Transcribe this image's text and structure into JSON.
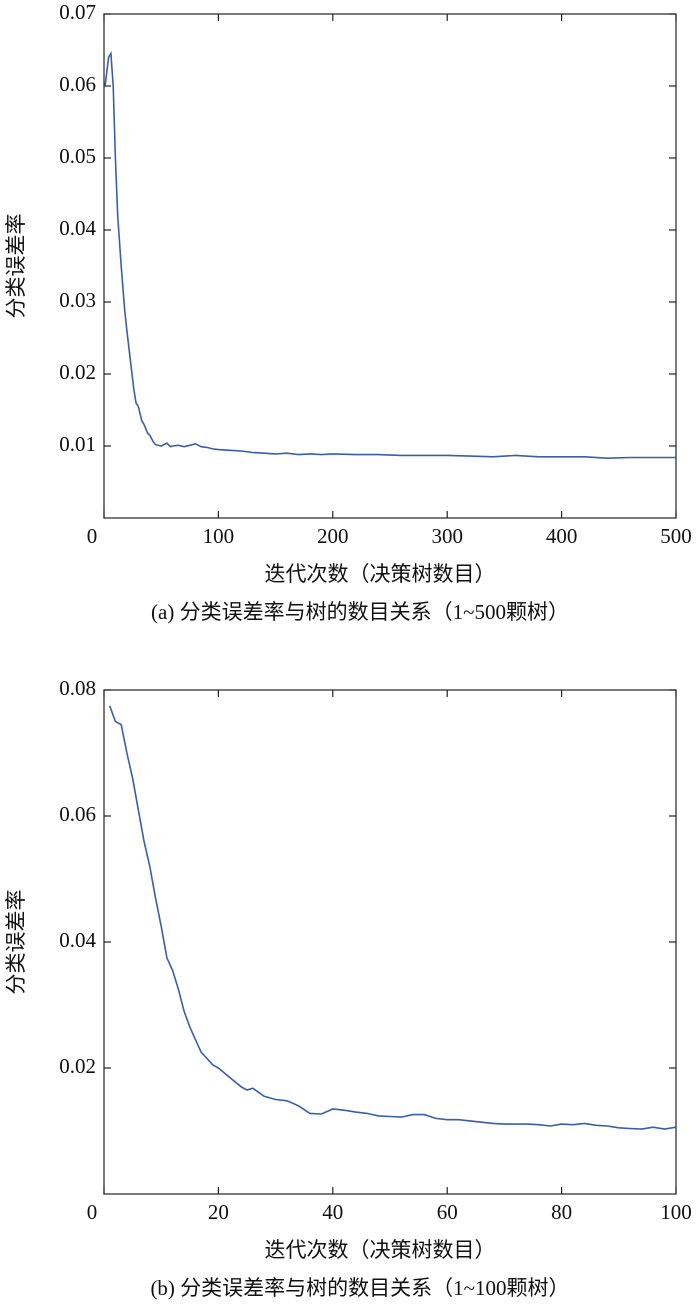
{
  "chart_data": [
    {
      "type": "line",
      "y_label": "分类误差率",
      "x_label": "迭代次数（决策树数目）",
      "caption": "(a) 分类误差率与树的数目关系（1~500颗树）",
      "color": "#3a5ea8",
      "x": [
        1,
        4,
        6,
        8,
        10,
        12,
        15,
        18,
        20,
        23,
        26,
        28,
        30,
        33,
        35,
        38,
        40,
        43,
        45,
        50,
        55,
        58,
        60,
        65,
        70,
        75,
        80,
        85,
        90,
        95,
        100,
        110,
        120,
        130,
        140,
        150,
        160,
        170,
        180,
        190,
        200,
        220,
        240,
        260,
        280,
        300,
        320,
        340,
        360,
        380,
        400,
        420,
        440,
        460,
        480,
        500
      ],
      "values": [
        0.06,
        0.064,
        0.0645,
        0.06,
        0.05,
        0.042,
        0.035,
        0.029,
        0.026,
        0.022,
        0.018,
        0.016,
        0.0155,
        0.0135,
        0.013,
        0.0118,
        0.0115,
        0.0106,
        0.0102,
        0.01,
        0.0104,
        0.0099,
        0.01,
        0.0101,
        0.0099,
        0.0101,
        0.0103,
        0.0099,
        0.0098,
        0.0096,
        0.0095,
        0.0094,
        0.0093,
        0.0091,
        0.009,
        0.0089,
        0.009,
        0.0088,
        0.0089,
        0.0088,
        0.0089,
        0.0088,
        0.0088,
        0.0087,
        0.0087,
        0.0087,
        0.0086,
        0.0085,
        0.0087,
        0.0085,
        0.0085,
        0.0085,
        0.0083,
        0.0084,
        0.0084,
        0.0084
      ],
      "xlim": [
        0,
        500
      ],
      "xticks": [
        0,
        100,
        200,
        300,
        400,
        500
      ],
      "ylim": [
        0,
        0.07
      ],
      "yticks": [
        0.01,
        0.02,
        0.03,
        0.04,
        0.05,
        0.06,
        0.07
      ]
    },
    {
      "type": "line",
      "y_label": "分类误差率",
      "x_label": "迭代次数（决策树数目）",
      "caption": "(b) 分类误差率与树的数目关系（1~100颗树）",
      "color": "#3a5ea8",
      "x": [
        1,
        2,
        3,
        4,
        5,
        6,
        7,
        8,
        9,
        10,
        11,
        12,
        13,
        14,
        15,
        16,
        17,
        18,
        19,
        20,
        22,
        24,
        25,
        26,
        28,
        30,
        32,
        34,
        36,
        38,
        40,
        42,
        44,
        46,
        48,
        50,
        52,
        54,
        56,
        58,
        60,
        62,
        64,
        66,
        68,
        70,
        72,
        74,
        76,
        78,
        80,
        82,
        84,
        86,
        88,
        90,
        92,
        94,
        96,
        98,
        100
      ],
      "values": [
        0.0775,
        0.075,
        0.0745,
        0.07,
        0.066,
        0.061,
        0.056,
        0.052,
        0.047,
        0.0425,
        0.0375,
        0.0355,
        0.0325,
        0.029,
        0.0265,
        0.0245,
        0.0225,
        0.0215,
        0.0205,
        0.02,
        0.0185,
        0.017,
        0.0165,
        0.0168,
        0.0155,
        0.015,
        0.0148,
        0.014,
        0.0128,
        0.0127,
        0.0135,
        0.0133,
        0.013,
        0.0128,
        0.0124,
        0.0123,
        0.0122,
        0.0126,
        0.0126,
        0.012,
        0.0118,
        0.0118,
        0.0116,
        0.0114,
        0.0112,
        0.0111,
        0.0111,
        0.0111,
        0.011,
        0.0108,
        0.0111,
        0.011,
        0.0112,
        0.0109,
        0.0108,
        0.0105,
        0.0104,
        0.0103,
        0.0106,
        0.0103,
        0.0106
      ],
      "xlim": [
        0,
        100
      ],
      "xticks": [
        0,
        20,
        40,
        60,
        80,
        100
      ],
      "ylim": [
        0,
        0.08
      ],
      "yticks": [
        0.02,
        0.04,
        0.06,
        0.08
      ]
    }
  ]
}
